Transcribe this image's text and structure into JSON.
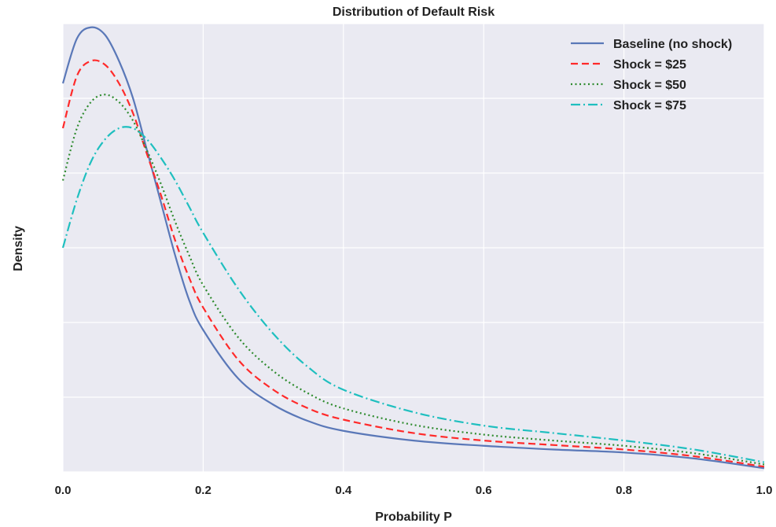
{
  "chart_data": {
    "type": "line",
    "title": "Distribution of Default Risk",
    "xlabel": "Probability P",
    "ylabel": "Density",
    "xlim": [
      0,
      1
    ],
    "ylim": [
      0,
      6.0
    ],
    "x_ticks": [
      "0.0",
      "0.2",
      "0.4",
      "0.6",
      "0.8",
      "1.0"
    ],
    "y_ticks_shown": false,
    "grid": true,
    "legend_position": "top-right",
    "background_color": "#eaeaf2",
    "series": [
      {
        "name": "Baseline (no shock)",
        "color": "#5a78b8",
        "dash": "solid",
        "x": [
          0.0,
          0.02,
          0.04,
          0.06,
          0.08,
          0.1,
          0.12,
          0.14,
          0.16,
          0.18,
          0.2,
          0.25,
          0.3,
          0.35,
          0.4,
          0.5,
          0.6,
          0.7,
          0.8,
          0.9,
          1.0
        ],
        "y": [
          5.2,
          5.8,
          5.95,
          5.85,
          5.5,
          5.0,
          4.3,
          3.6,
          2.9,
          2.3,
          1.9,
          1.25,
          0.9,
          0.68,
          0.55,
          0.42,
          0.35,
          0.3,
          0.26,
          0.18,
          0.05
        ]
      },
      {
        "name": "Shock = $25",
        "color": "#ff2a2a",
        "dash": "dashed",
        "x": [
          0.0,
          0.02,
          0.04,
          0.06,
          0.08,
          0.1,
          0.12,
          0.14,
          0.16,
          0.18,
          0.2,
          0.25,
          0.3,
          0.35,
          0.4,
          0.5,
          0.6,
          0.7,
          0.8,
          0.9,
          1.0
        ],
        "y": [
          4.6,
          5.3,
          5.5,
          5.45,
          5.2,
          4.8,
          4.25,
          3.7,
          3.1,
          2.6,
          2.2,
          1.5,
          1.1,
          0.85,
          0.7,
          0.52,
          0.42,
          0.36,
          0.3,
          0.21,
          0.07
        ]
      },
      {
        "name": "Shock = $50",
        "color": "#2e8b2e",
        "dash": "dotted",
        "x": [
          0.0,
          0.02,
          0.04,
          0.06,
          0.08,
          0.1,
          0.12,
          0.14,
          0.16,
          0.18,
          0.2,
          0.25,
          0.3,
          0.35,
          0.4,
          0.5,
          0.6,
          0.7,
          0.8,
          0.9,
          1.0
        ],
        "y": [
          3.9,
          4.6,
          4.95,
          5.05,
          4.95,
          4.7,
          4.3,
          3.85,
          3.35,
          2.9,
          2.5,
          1.8,
          1.35,
          1.05,
          0.85,
          0.63,
          0.5,
          0.42,
          0.35,
          0.25,
          0.1
        ]
      },
      {
        "name": "Shock = $75",
        "color": "#1fbfbf",
        "dash": "dashdot",
        "x": [
          0.0,
          0.02,
          0.04,
          0.06,
          0.08,
          0.1,
          0.12,
          0.14,
          0.16,
          0.18,
          0.2,
          0.25,
          0.3,
          0.35,
          0.4,
          0.5,
          0.6,
          0.7,
          0.8,
          0.9,
          1.0
        ],
        "y": [
          3.0,
          3.65,
          4.15,
          4.45,
          4.6,
          4.6,
          4.45,
          4.2,
          3.9,
          3.55,
          3.2,
          2.45,
          1.85,
          1.4,
          1.1,
          0.8,
          0.62,
          0.52,
          0.42,
          0.3,
          0.13
        ]
      }
    ]
  }
}
